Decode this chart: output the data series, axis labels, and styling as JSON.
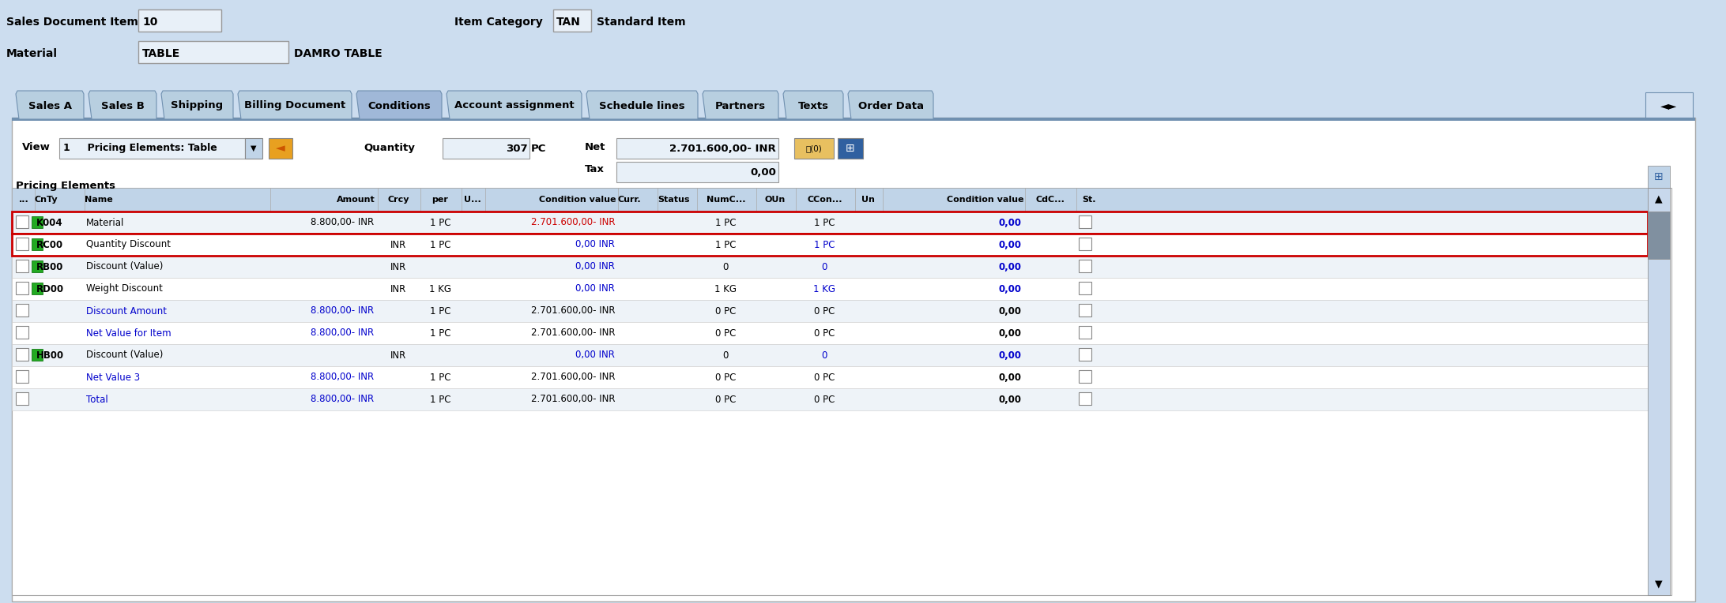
{
  "bg_color": "#ccddef",
  "white_bg": "#ffffff",
  "tab_bg": "#b8cfe0",
  "tab_active_bg": "#a8c0dc",
  "input_bg": "#e8f0f8",
  "header_bg": "#c0d4e8",
  "row_alt": "#eef3f8",
  "green_icon": "#22aa22",
  "tabs": [
    "Sales A",
    "Sales B",
    "Shipping",
    "Billing Document",
    "Conditions",
    "Account assignment",
    "Schedule lines",
    "Partners",
    "Texts",
    "Order Data"
  ],
  "active_tab": "Conditions",
  "rows": [
    {
      "icon": "green",
      "cnty": "K004",
      "name": "Material",
      "amount": "8.800,00- INR",
      "crcy": "",
      "per": "1 PC",
      "condval": "2.701.600,00- INR",
      "numc": "1 PC",
      "ccon": "1 PC",
      "condval2": "0,00",
      "highlight": true,
      "name_col": "#000000",
      "amt_col": "#000000",
      "cv_col": "#cc0000",
      "cv2_col": "#0000cc"
    },
    {
      "icon": "green",
      "cnty": "RC00",
      "name": "Quantity Discount",
      "amount": "",
      "crcy": "INR",
      "per": "1 PC",
      "condval": "0,00 INR",
      "numc": "1 PC",
      "ccon": "1 PC",
      "condval2": "0,00",
      "highlight": true,
      "name_col": "#000000",
      "amt_col": "#000000",
      "cv_col": "#0000cc",
      "cv2_col": "#0000cc"
    },
    {
      "icon": "green",
      "cnty": "RB00",
      "name": "Discount (Value)",
      "amount": "",
      "crcy": "INR",
      "per": "",
      "condval": "0,00 INR",
      "numc": "0",
      "ccon": "0",
      "condval2": "0,00",
      "highlight": false,
      "name_col": "#000000",
      "amt_col": "#000000",
      "cv_col": "#0000cc",
      "cv2_col": "#0000cc"
    },
    {
      "icon": "green",
      "cnty": "RD00",
      "name": "Weight Discount",
      "amount": "",
      "crcy": "INR",
      "per": "1 KG",
      "condval": "0,00 INR",
      "numc": "1 KG",
      "ccon": "1 KG",
      "condval2": "0,00",
      "highlight": false,
      "name_col": "#000000",
      "amt_col": "#000000",
      "cv_col": "#0000cc",
      "cv2_col": "#0000cc"
    },
    {
      "icon": "",
      "cnty": "",
      "name": "Discount Amount",
      "amount": "8.800,00- INR",
      "crcy": "",
      "per": "1 PC",
      "condval": "2.701.600,00- INR",
      "numc": "0 PC",
      "ccon": "0 PC",
      "condval2": "0,00",
      "highlight": false,
      "name_col": "#0000cc",
      "amt_col": "#0000cc",
      "cv_col": "#000000",
      "cv2_col": "#000000"
    },
    {
      "icon": "",
      "cnty": "",
      "name": "Net Value for Item",
      "amount": "8.800,00- INR",
      "crcy": "",
      "per": "1 PC",
      "condval": "2.701.600,00- INR",
      "numc": "0 PC",
      "ccon": "0 PC",
      "condval2": "0,00",
      "highlight": false,
      "name_col": "#0000cc",
      "amt_col": "#0000cc",
      "cv_col": "#000000",
      "cv2_col": "#000000"
    },
    {
      "icon": "green",
      "cnty": "HB00",
      "name": "Discount (Value)",
      "amount": "",
      "crcy": "INR",
      "per": "",
      "condval": "0,00 INR",
      "numc": "0",
      "ccon": "0",
      "condval2": "0,00",
      "highlight": false,
      "name_col": "#000000",
      "amt_col": "#000000",
      "cv_col": "#0000cc",
      "cv2_col": "#0000cc"
    },
    {
      "icon": "",
      "cnty": "",
      "name": "Net Value 3",
      "amount": "8.800,00- INR",
      "crcy": "",
      "per": "1 PC",
      "condval": "2.701.600,00- INR",
      "numc": "0 PC",
      "ccon": "0 PC",
      "condval2": "0,00",
      "highlight": false,
      "name_col": "#0000cc",
      "amt_col": "#0000cc",
      "cv_col": "#000000",
      "cv2_col": "#000000"
    },
    {
      "icon": "",
      "cnty": "",
      "name": "Total",
      "amount": "8.800,00- INR",
      "crcy": "",
      "per": "1 PC",
      "condval": "2.701.600,00- INR",
      "numc": "0 PC",
      "ccon": "0 PC",
      "condval2": "0,00",
      "highlight": false,
      "name_col": "#0000cc",
      "amt_col": "#0000cc",
      "cv_col": "#000000",
      "cv2_col": "#000000"
    }
  ]
}
